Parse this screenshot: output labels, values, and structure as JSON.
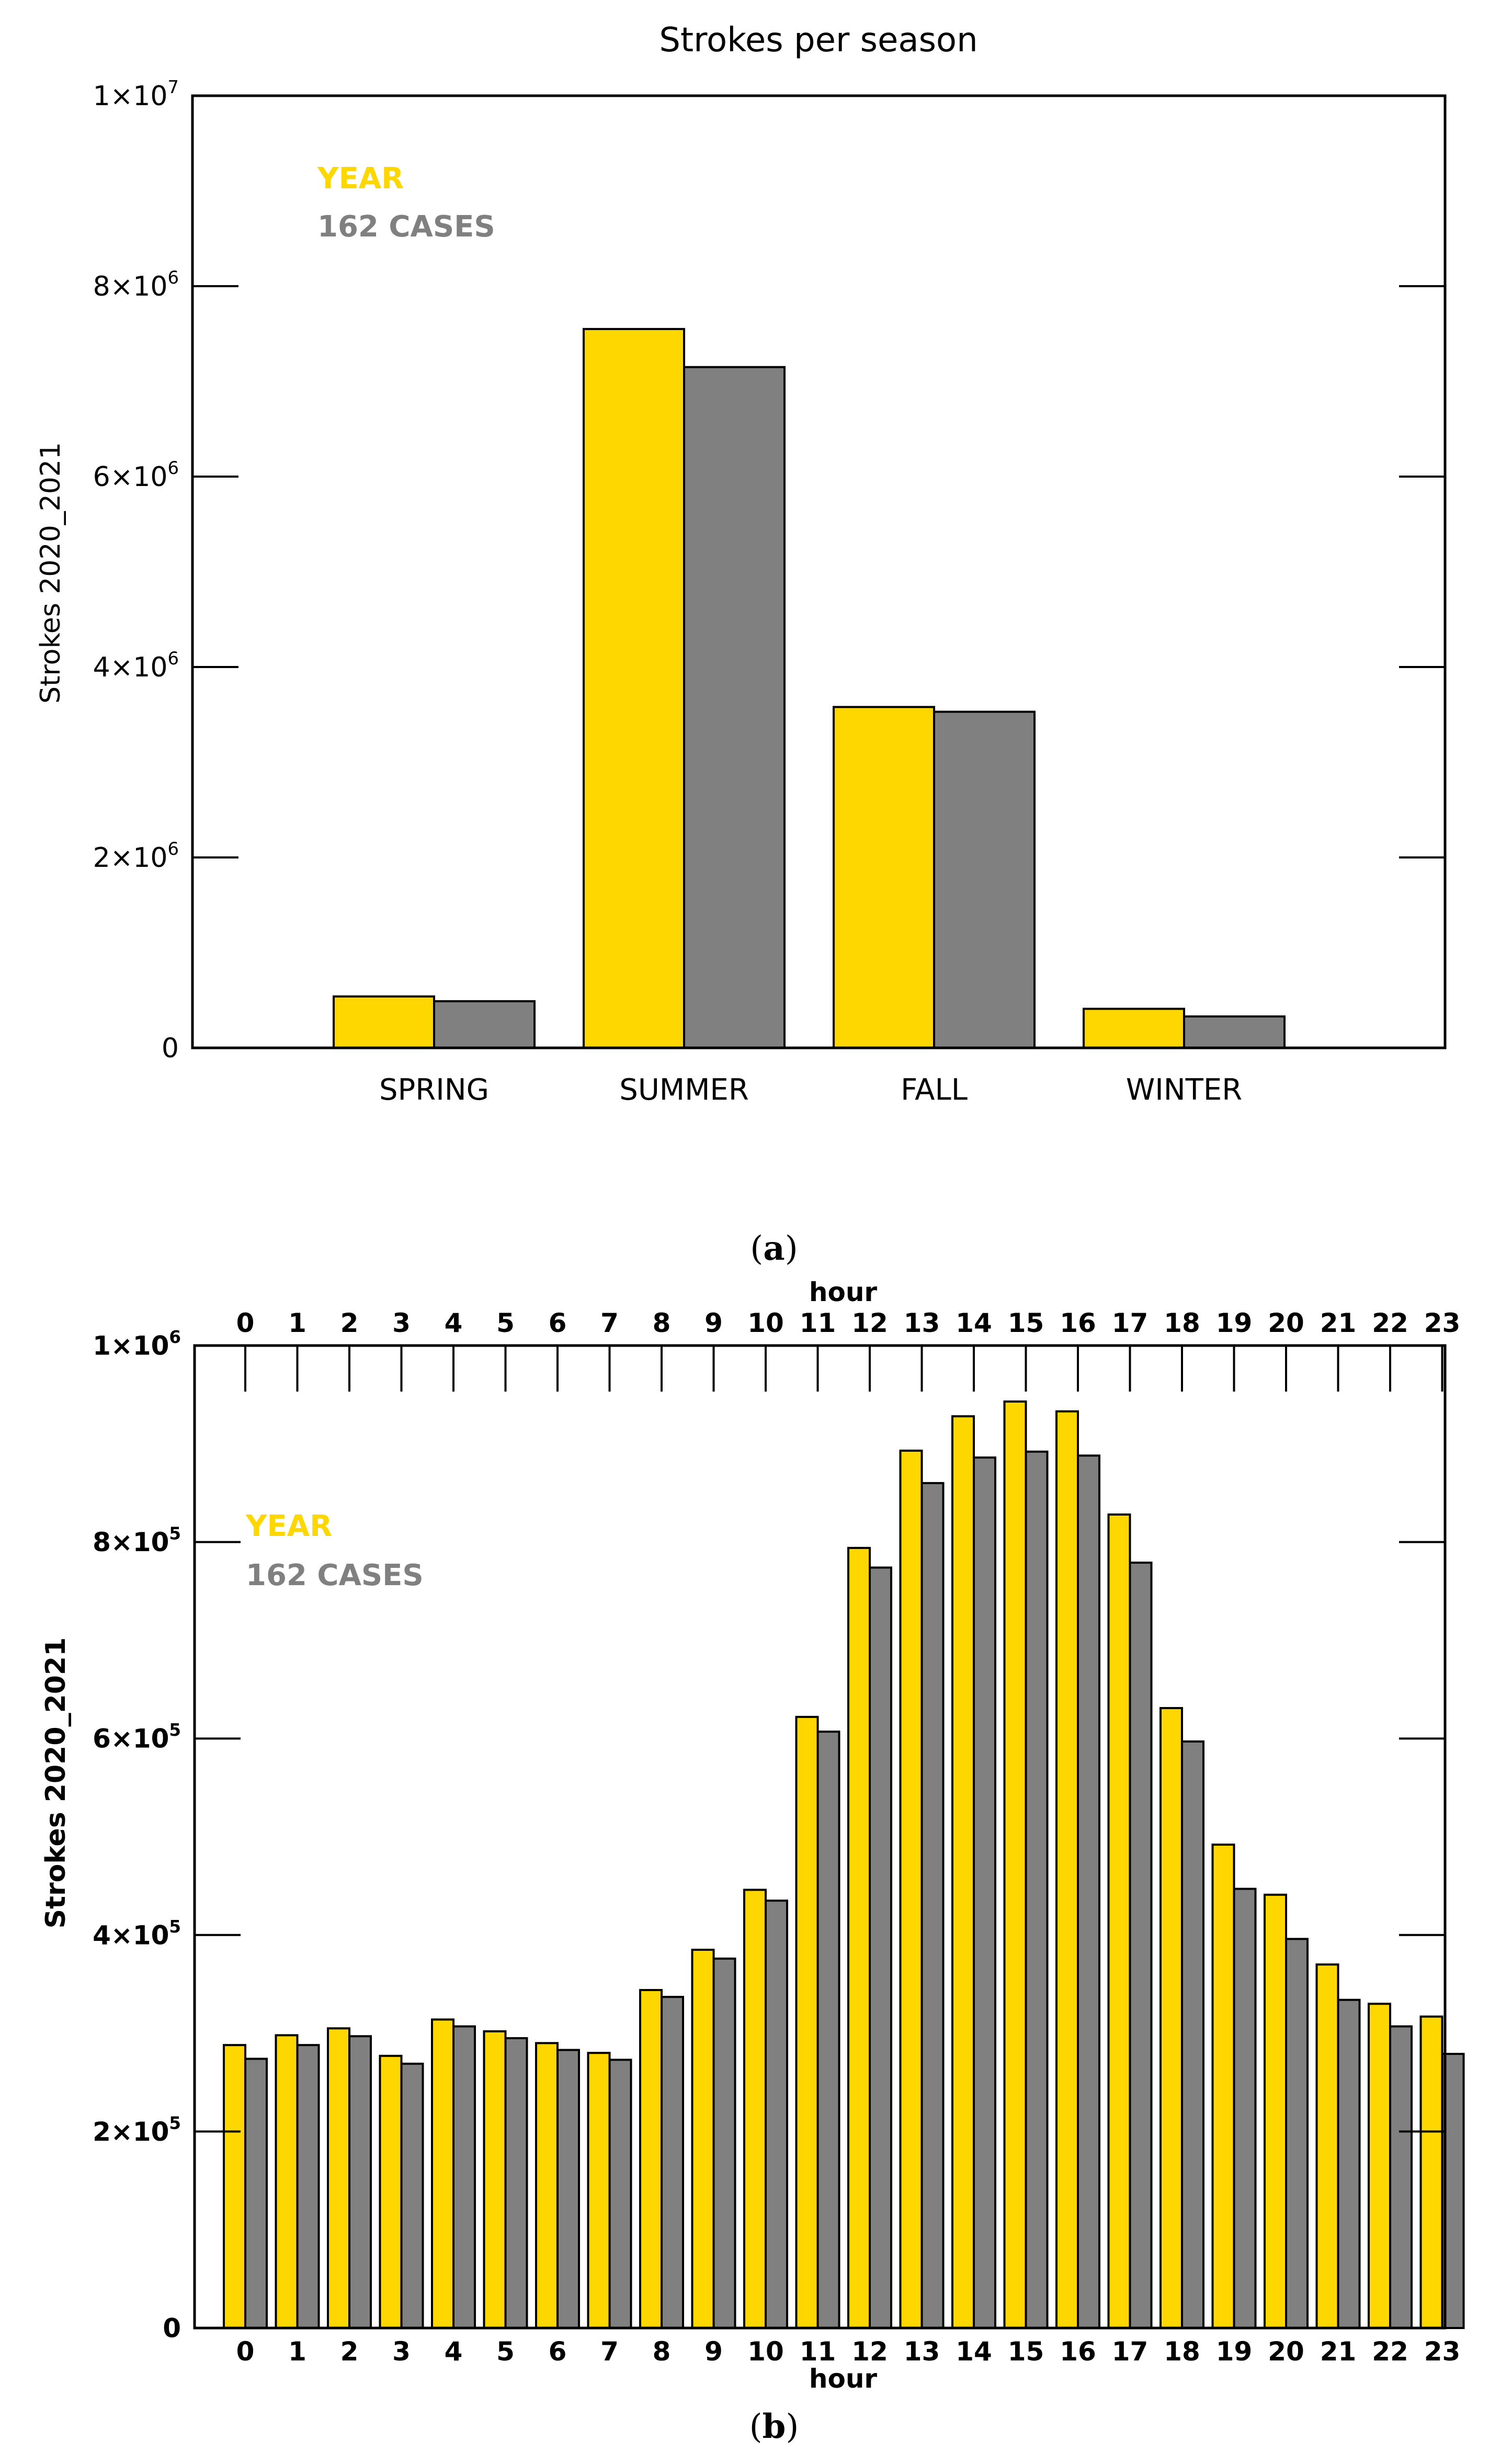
{
  "panels": {
    "a": {
      "caption_open": "(",
      "caption_letter": "a",
      "caption_close": ")"
    },
    "b": {
      "caption_open": "(",
      "caption_letter": "b",
      "caption_close": ")"
    }
  },
  "colors": {
    "year": "#FFD700",
    "cases": "#808080",
    "axis": "#000000"
  },
  "chart_data": [
    {
      "type": "bar",
      "title": "Strokes per season",
      "xlabel": "",
      "ylabel": "Strokes 2020_2021",
      "ylim": [
        0,
        10000000
      ],
      "yticks": [
        {
          "value": 0,
          "label": "0",
          "exp": ""
        },
        {
          "value": 2000000,
          "label": "2×10",
          "exp": "6"
        },
        {
          "value": 4000000,
          "label": "4×10",
          "exp": "6"
        },
        {
          "value": 6000000,
          "label": "6×10",
          "exp": "6"
        },
        {
          "value": 8000000,
          "label": "8×10",
          "exp": "6"
        },
        {
          "value": 10000000,
          "label": "1×10",
          "exp": "7"
        }
      ],
      "categories": [
        "SPRING",
        "SUMMER",
        "FALL",
        "WINTER"
      ],
      "series": [
        {
          "name": "YEAR",
          "values": [
            540000,
            7550000,
            3580000,
            410000
          ]
        },
        {
          "name": "162 CASES",
          "values": [
            490000,
            7150000,
            3530000,
            330000
          ]
        }
      ],
      "legend": "top-left"
    },
    {
      "type": "bar",
      "title": "",
      "xlabel": "hour",
      "x2label": "hour",
      "ylabel": "Strokes 2020_2021",
      "ylim": [
        0,
        1000000
      ],
      "yticks": [
        {
          "value": 0,
          "label": "0",
          "exp": ""
        },
        {
          "value": 200000,
          "label": "2×10",
          "exp": "5"
        },
        {
          "value": 400000,
          "label": "4×10",
          "exp": "5"
        },
        {
          "value": 600000,
          "label": "6×10",
          "exp": "5"
        },
        {
          "value": 800000,
          "label": "8×10",
          "exp": "5"
        },
        {
          "value": 1000000,
          "label": "1×10",
          "exp": "6"
        }
      ],
      "categories": [
        "0",
        "1",
        "2",
        "3",
        "4",
        "5",
        "6",
        "7",
        "8",
        "9",
        "10",
        "11",
        "12",
        "13",
        "14",
        "15",
        "16",
        "17",
        "18",
        "19",
        "20",
        "21",
        "22",
        "23"
      ],
      "series": [
        {
          "name": "YEAR",
          "values": [
            288000,
            298000,
            305000,
            277000,
            314000,
            302000,
            290000,
            280000,
            344000,
            385000,
            446000,
            622000,
            794000,
            893000,
            928000,
            943000,
            933000,
            828000,
            631000,
            492000,
            441000,
            370000,
            330000,
            317000
          ]
        },
        {
          "name": "162 CASES",
          "values": [
            274000,
            288000,
            297000,
            269000,
            307000,
            295000,
            283000,
            273000,
            337000,
            376000,
            435000,
            607000,
            774000,
            860000,
            886000,
            892000,
            888000,
            779000,
            597000,
            447000,
            396000,
            334000,
            307000,
            279000
          ]
        }
      ],
      "legend": "top-left"
    }
  ]
}
